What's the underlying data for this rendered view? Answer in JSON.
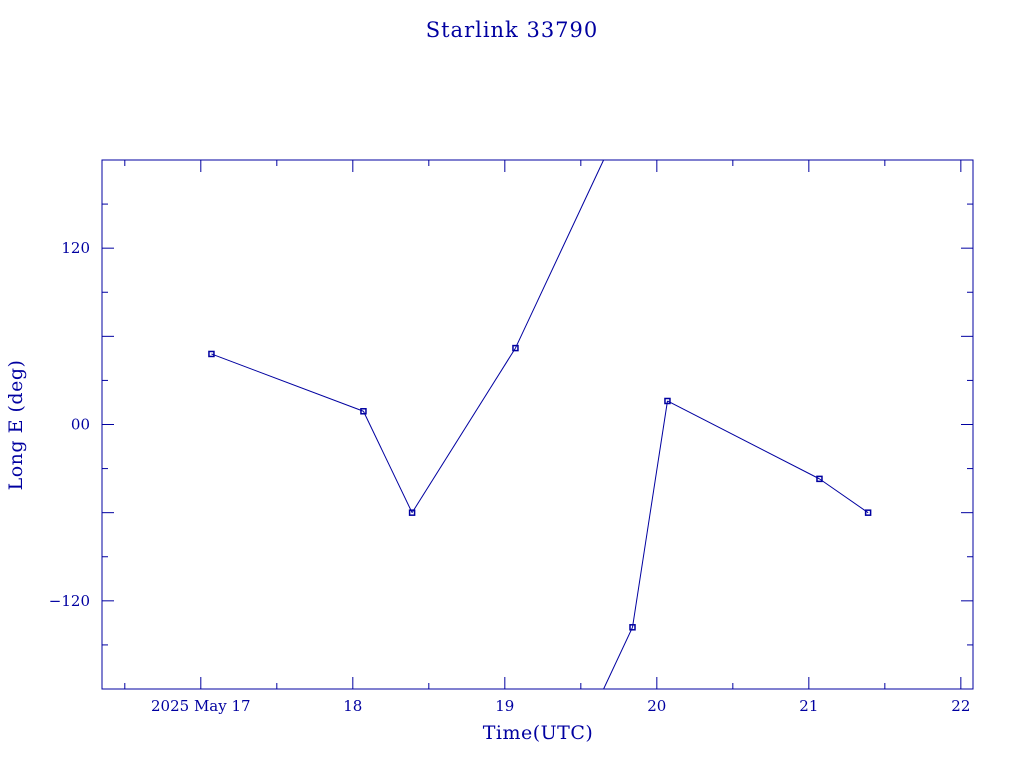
{
  "chart_data": {
    "type": "line",
    "title": "Starlink 33790",
    "xlabel": "Time(UTC)",
    "ylabel": "Long E (deg)",
    "x_range": [
      16.35,
      22.08
    ],
    "ylim": [
      -180,
      180
    ],
    "x_ticks": [
      {
        "value": 17,
        "label": "2025 May 17"
      },
      {
        "value": 18,
        "label": "18"
      },
      {
        "value": 19,
        "label": "19"
      },
      {
        "value": 20,
        "label": "20"
      },
      {
        "value": 21,
        "label": "21"
      },
      {
        "value": 22,
        "label": "22"
      }
    ],
    "y_ticks": [
      {
        "value": 120,
        "label": "120"
      },
      {
        "value": 0,
        "label": "00"
      },
      {
        "value": -120,
        "label": "−120"
      }
    ],
    "series": [
      {
        "marker": "square",
        "color": "#0000a0",
        "points": [
          {
            "x": 17.07,
            "y": 48
          },
          {
            "x": 18.07,
            "y": 9
          },
          {
            "x": 18.39,
            "y": -60
          },
          {
            "x": 19.07,
            "y": 52
          },
          {
            "x": 19.84,
            "y": -138
          },
          {
            "x": 20.07,
            "y": 16
          },
          {
            "x": 21.07,
            "y": -37
          },
          {
            "x": 21.39,
            "y": -60
          }
        ],
        "wrap_between": [
          3,
          4
        ]
      }
    ],
    "grid": false,
    "legend": "none"
  },
  "colors": {
    "axis": "#0000a0",
    "data": "#0000a0",
    "background": "#ffffff"
  }
}
